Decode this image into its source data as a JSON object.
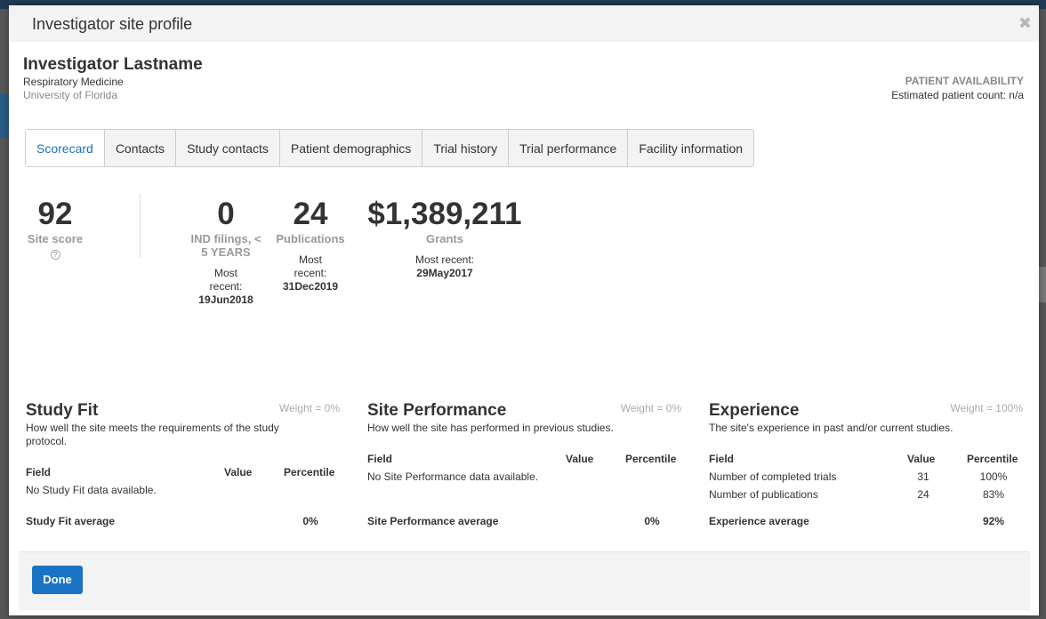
{
  "modal": {
    "title": "Investigator site profile",
    "close_icon": "close-icon"
  },
  "investigator": {
    "name": "Investigator Lastname",
    "department": "Respiratory Medicine",
    "institution": "University of Florida"
  },
  "patient_availability": {
    "title": "PATIENT AVAILABILITY",
    "count_text": "Estimated patient count: n/a"
  },
  "tabs": [
    {
      "label": "Scorecard",
      "active": true
    },
    {
      "label": "Contacts"
    },
    {
      "label": "Study contacts"
    },
    {
      "label": "Patient demographics"
    },
    {
      "label": "Trial history"
    },
    {
      "label": "Trial performance"
    },
    {
      "label": "Facility information"
    }
  ],
  "metrics": {
    "site_score": {
      "value": "92",
      "label": "Site score",
      "help_glyph": "?"
    },
    "ind": {
      "value": "0",
      "label": "IND filings, < 5 YEARS",
      "most_recent_label": "Most recent:",
      "date": "19Jun2018"
    },
    "publications": {
      "value": "24",
      "label": "Publications",
      "most_recent_label": "Most recent:",
      "date": "31Dec2019"
    },
    "grants": {
      "value": "$1,389,211",
      "label": "Grants",
      "most_recent_label": "Most recent:",
      "date": "29May2017"
    }
  },
  "sections": {
    "study_fit": {
      "title": "Study Fit",
      "weight": "Weight = 0%",
      "description": "How well the site meets the requirements of the study protocol.",
      "headers": {
        "field": "Field",
        "value": "Value",
        "percentile": "Percentile"
      },
      "empty": "No Study Fit data available.",
      "avg_label": "Study Fit average",
      "avg_value": "0%"
    },
    "site_performance": {
      "title": "Site Performance",
      "weight": "Weight = 0%",
      "description": "How well the site has performed in previous studies.",
      "headers": {
        "field": "Field",
        "value": "Value",
        "percentile": "Percentile"
      },
      "empty": "No Site Performance data available.",
      "avg_label": "Site Performance average",
      "avg_value": "0%"
    },
    "experience": {
      "title": "Experience",
      "weight": "Weight = 100%",
      "description": "The site's experience in past and/or current studies.",
      "headers": {
        "field": "Field",
        "value": "Value",
        "percentile": "Percentile"
      },
      "rows": [
        {
          "field": "Number of completed trials",
          "value": "31",
          "percentile": "100%"
        },
        {
          "field": "Number of publications",
          "value": "24",
          "percentile": "83%"
        }
      ],
      "avg_label": "Experience average",
      "avg_value": "92%"
    }
  },
  "footer": {
    "done_label": "Done"
  },
  "colors": {
    "accent": "#1a73c4",
    "active_tab": "#1a73b5",
    "muted": "#999999"
  }
}
